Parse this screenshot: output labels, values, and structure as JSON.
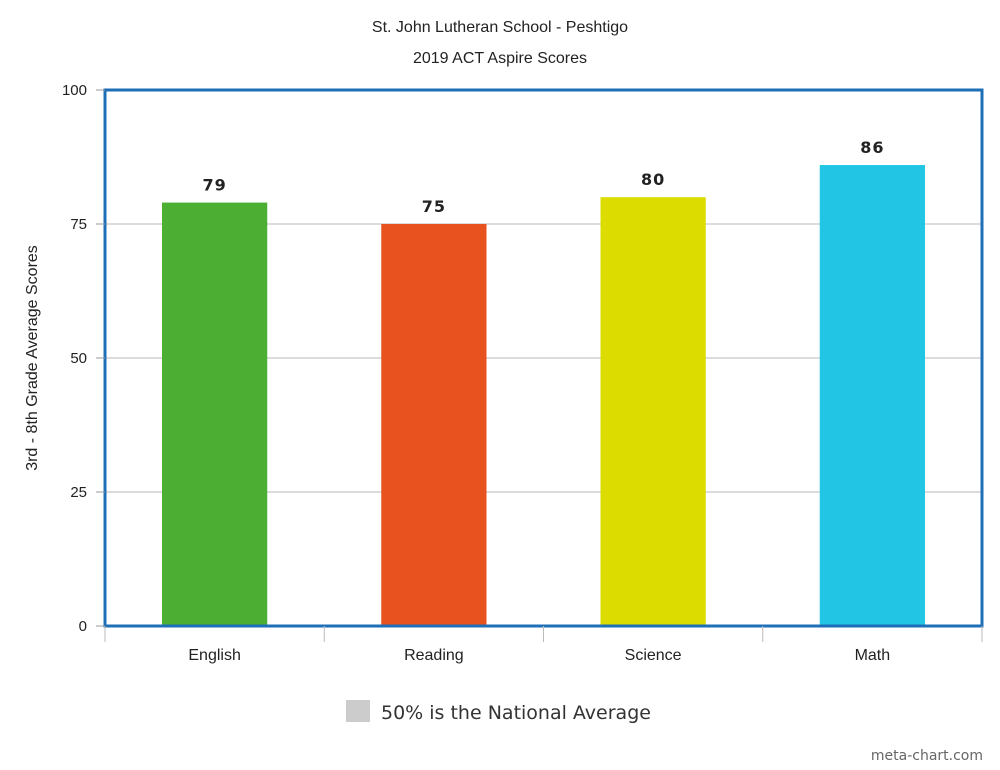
{
  "chart_data": {
    "type": "bar",
    "title": "St. John Lutheran School - Peshtigo",
    "subtitle": "2019 ACT Aspire Scores",
    "categories": [
      "English",
      "Reading",
      "Science",
      "Math"
    ],
    "values": [
      79,
      75,
      80,
      86
    ],
    "colors": [
      "#4caf33",
      "#e8521e",
      "#dcdc00",
      "#22c6e4"
    ],
    "xlabel": "",
    "ylabel": "3rd - 8th Grade Average Scores",
    "ylim": [
      0,
      100
    ],
    "yticks": [
      0,
      25,
      50,
      75,
      100
    ],
    "grid": true,
    "frame_color": "#1e6fb8",
    "legend": {
      "placement": "bottom-center",
      "label": "50% is the National Average",
      "swatch_color": "#cccccc"
    },
    "credit": "meta-chart.com"
  }
}
